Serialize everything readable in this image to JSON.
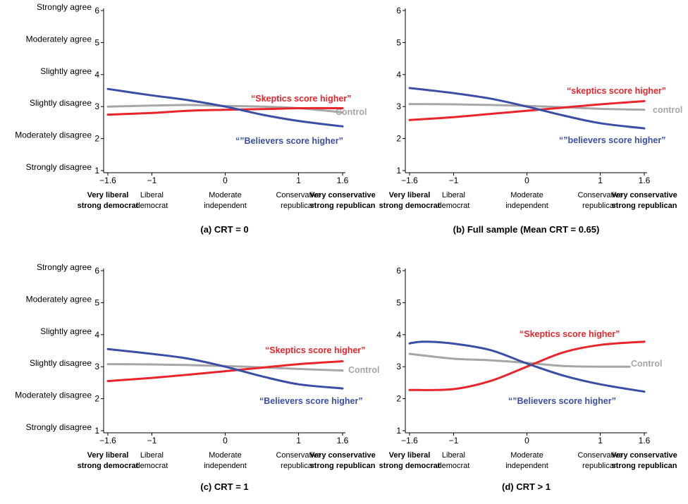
{
  "colors": {
    "believers": "#3a4fa3",
    "skeptics": "#e8252b",
    "control": "#a6a6a6"
  },
  "y_ticks": [
    1,
    2,
    3,
    4,
    5,
    6
  ],
  "y_labels": [
    "Strongly disagree",
    "Moderately disagree",
    "Slightly disagree",
    "Slightly agree",
    "Moderately agree",
    "Strongly agree"
  ],
  "x_ticks": [
    {
      "value": -1.6,
      "label": "−1.6"
    },
    {
      "value": -1,
      "label": "−1"
    },
    {
      "value": 0,
      "label": "0"
    },
    {
      "value": 1,
      "label": "1"
    },
    {
      "value": 1.6,
      "label": "1.6"
    }
  ],
  "x_categories": [
    {
      "value": -1.6,
      "line1": "Very  liberal",
      "line2": "strong democrat",
      "bold": true
    },
    {
      "value": -1,
      "line1": "Liberal",
      "line2": "democrat",
      "bold": false
    },
    {
      "value": 0,
      "line1": "Moderate",
      "line2": "independent",
      "bold": false
    },
    {
      "value": 1,
      "line1": "Conservative",
      "line2": "republican",
      "bold": false
    },
    {
      "value": 1.6,
      "line1": "Very conservative",
      "line2": "strong republican",
      "bold": true
    }
  ],
  "chart_data": [
    {
      "type": "line",
      "caption": "(a) CRT = 0",
      "show_y_labels": true,
      "xlim": [
        -1.6,
        1.6
      ],
      "ylim": [
        1,
        6
      ],
      "series": [
        {
          "name": "Control",
          "label": "Control",
          "color": "control",
          "x": [
            -1.6,
            -1.0,
            -0.5,
            0.0,
            0.5,
            1.0,
            1.6
          ],
          "y": [
            3.0,
            3.03,
            3.05,
            3.02,
            3.0,
            2.95,
            2.82
          ]
        },
        {
          "name": "Skeptics",
          "label": "“Skeptics score higher”",
          "color": "skeptics",
          "x": [
            -1.6,
            -1.0,
            -0.5,
            0.0,
            0.5,
            1.0,
            1.6
          ],
          "y": [
            2.75,
            2.8,
            2.87,
            2.9,
            2.92,
            2.95,
            2.95
          ]
        },
        {
          "name": "Believers",
          "label": "“”Believers score higher”",
          "color": "believers",
          "x": [
            -1.6,
            -1.0,
            -0.5,
            0.0,
            0.5,
            1.0,
            1.6
          ],
          "y": [
            3.55,
            3.35,
            3.2,
            3.0,
            2.75,
            2.55,
            2.38
          ]
        }
      ]
    },
    {
      "type": "line",
      "caption": "(b) Full sample (Mean CRT = 0.65)",
      "show_y_labels": false,
      "xlim": [
        -1.6,
        1.6
      ],
      "ylim": [
        1,
        6
      ],
      "series": [
        {
          "name": "Control",
          "label": "control",
          "color": "control",
          "x": [
            -1.6,
            -1.0,
            -0.5,
            0.0,
            0.5,
            1.0,
            1.6
          ],
          "y": [
            3.08,
            3.07,
            3.05,
            3.02,
            2.98,
            2.93,
            2.9
          ]
        },
        {
          "name": "Skeptics",
          "label": "“skeptics score higher”",
          "color": "skeptics",
          "x": [
            -1.6,
            -1.0,
            -0.5,
            0.0,
            0.5,
            1.0,
            1.6
          ],
          "y": [
            2.58,
            2.67,
            2.77,
            2.87,
            2.97,
            3.07,
            3.17
          ]
        },
        {
          "name": "Believers",
          "label": "“”believers score higher”",
          "color": "believers",
          "x": [
            -1.6,
            -1.0,
            -0.5,
            0.0,
            0.5,
            1.0,
            1.6
          ],
          "y": [
            3.58,
            3.42,
            3.25,
            3.0,
            2.72,
            2.48,
            2.32
          ]
        }
      ]
    },
    {
      "type": "line",
      "caption": "(c) CRT = 1",
      "show_y_labels": true,
      "xlim": [
        -1.6,
        1.6
      ],
      "ylim": [
        1,
        6
      ],
      "series": [
        {
          "name": "Control",
          "label": "Control",
          "color": "control",
          "x": [
            -1.6,
            -1.0,
            -0.5,
            0.0,
            0.5,
            1.0,
            1.6
          ],
          "y": [
            3.08,
            3.07,
            3.05,
            3.02,
            2.98,
            2.93,
            2.88
          ]
        },
        {
          "name": "Skeptics",
          "label": "“Skeptics score higher”",
          "color": "skeptics",
          "x": [
            -1.6,
            -1.0,
            -0.5,
            0.0,
            0.5,
            1.0,
            1.6
          ],
          "y": [
            2.55,
            2.65,
            2.75,
            2.86,
            2.97,
            3.08,
            3.17
          ]
        },
        {
          "name": "Believers",
          "label": "“Believers score higher”",
          "color": "believers",
          "x": [
            -1.6,
            -1.0,
            -0.5,
            0.0,
            0.5,
            1.0,
            1.6
          ],
          "y": [
            3.55,
            3.4,
            3.25,
            3.0,
            2.7,
            2.45,
            2.32
          ]
        }
      ]
    },
    {
      "type": "line",
      "caption": "(d) CRT > 1",
      "show_y_labels": false,
      "xlim": [
        -1.6,
        1.6
      ],
      "ylim": [
        1,
        6
      ],
      "series": [
        {
          "name": "Control",
          "label": "Control",
          "color": "control",
          "x": [
            -1.6,
            -1.0,
            -0.5,
            0.0,
            0.5,
            1.0,
            1.4
          ],
          "y": [
            3.4,
            3.25,
            3.2,
            3.12,
            3.02,
            3.0,
            3.0
          ]
        },
        {
          "name": "Skeptics",
          "label": "“Skeptics score higher”",
          "color": "skeptics",
          "x": [
            -1.6,
            -1.0,
            -0.5,
            0.0,
            0.5,
            1.0,
            1.6
          ],
          "y": [
            2.27,
            2.3,
            2.55,
            3.0,
            3.45,
            3.68,
            3.78
          ]
        },
        {
          "name": "Believers",
          "label": "“”Believers score higher”",
          "color": "believers",
          "x": [
            -1.6,
            -1.4,
            -1.0,
            -0.5,
            0.0,
            0.5,
            1.0,
            1.6
          ],
          "y": [
            3.73,
            3.78,
            3.72,
            3.52,
            3.1,
            2.72,
            2.45,
            2.22
          ]
        }
      ]
    }
  ]
}
